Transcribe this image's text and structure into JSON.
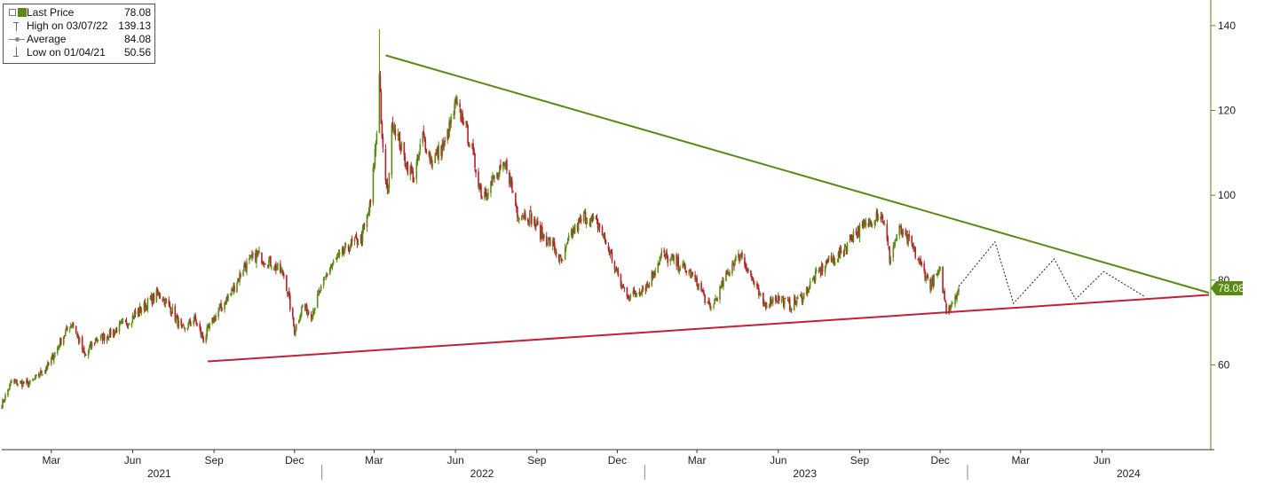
{
  "legend": {
    "last_price_label": "Last Price",
    "last_price_value": "78.08",
    "high_label": "High on 03/07/22",
    "high_value": "139.13",
    "average_label": "Average",
    "average_value": "84.08",
    "low_label": "Low on 01/04/21",
    "low_value": "50.56"
  },
  "chart_data": {
    "type": "candlestick",
    "x_start": "2021-01-04",
    "x_end": "2024-09-30",
    "ylim": [
      40,
      145
    ],
    "yticks": [
      60,
      80,
      100,
      120,
      140
    ],
    "x_month_ticks": [
      {
        "label": "Mar",
        "date": "2021-03-01"
      },
      {
        "label": "Jun",
        "date": "2021-06-01"
      },
      {
        "label": "Sep",
        "date": "2021-09-01"
      },
      {
        "label": "Dec",
        "date": "2021-12-01"
      },
      {
        "label": "Mar",
        "date": "2022-03-01"
      },
      {
        "label": "Jun",
        "date": "2022-06-01"
      },
      {
        "label": "Sep",
        "date": "2022-09-01"
      },
      {
        "label": "Dec",
        "date": "2022-12-01"
      },
      {
        "label": "Mar",
        "date": "2023-03-01"
      },
      {
        "label": "Jun",
        "date": "2023-06-01"
      },
      {
        "label": "Sep",
        "date": "2023-09-01"
      },
      {
        "label": "Dec",
        "date": "2023-12-01"
      },
      {
        "label": "Mar",
        "date": "2024-03-01"
      },
      {
        "label": "Jun",
        "date": "2024-06-01"
      }
    ],
    "x_year_labels": [
      {
        "label": "2021",
        "date": "2021-07-01"
      },
      {
        "label": "2022",
        "date": "2022-07-01"
      },
      {
        "label": "2023",
        "date": "2023-07-01"
      },
      {
        "label": "2024",
        "date": "2024-07-01"
      }
    ],
    "year_separators": [
      "2022-01-01",
      "2023-01-01",
      "2024-01-01"
    ],
    "last_price_marker": {
      "value": 78.08,
      "label": "78.08",
      "color": "#5b8a13"
    },
    "colors": {
      "up": "#5b8a13",
      "down": "#b5202e",
      "resistance": "#5b8a13",
      "support": "#c0203a",
      "projection": "#222222",
      "axis": "#5b8a13"
    },
    "price_path": [
      [
        "2021-01-04",
        50.56
      ],
      [
        "2021-01-15",
        56
      ],
      [
        "2021-02-05",
        55.5
      ],
      [
        "2021-02-26",
        60
      ],
      [
        "2021-03-15",
        67
      ],
      [
        "2021-03-25",
        70
      ],
      [
        "2021-04-08",
        62
      ],
      [
        "2021-04-20",
        66
      ],
      [
        "2021-05-05",
        67
      ],
      [
        "2021-05-25",
        70
      ],
      [
        "2021-06-15",
        74
      ],
      [
        "2021-07-01",
        77
      ],
      [
        "2021-07-15",
        73
      ],
      [
        "2021-07-27",
        68
      ],
      [
        "2021-08-10",
        71
      ],
      [
        "2021-08-20",
        66
      ],
      [
        "2021-09-01",
        71
      ],
      [
        "2021-09-20",
        77
      ],
      [
        "2021-10-05",
        83
      ],
      [
        "2021-10-20",
        86
      ],
      [
        "2021-11-05",
        84
      ],
      [
        "2021-11-20",
        81
      ],
      [
        "2021-12-01",
        68
      ],
      [
        "2021-12-10",
        74
      ],
      [
        "2021-12-20",
        72
      ],
      [
        "2022-01-10",
        83
      ],
      [
        "2022-02-01",
        88
      ],
      [
        "2022-02-15",
        90
      ],
      [
        "2022-02-25",
        98
      ],
      [
        "2022-03-04",
        115
      ],
      [
        "2022-03-07",
        130
      ],
      [
        "2022-03-10",
        112
      ],
      [
        "2022-03-16",
        100
      ],
      [
        "2022-03-22",
        118
      ],
      [
        "2022-04-05",
        108
      ],
      [
        "2022-04-15",
        104
      ],
      [
        "2022-04-25",
        114
      ],
      [
        "2022-05-05",
        108
      ],
      [
        "2022-05-20",
        112
      ],
      [
        "2022-06-01",
        121
      ],
      [
        "2022-06-10",
        118
      ],
      [
        "2022-06-20",
        110
      ],
      [
        "2022-07-01",
        100
      ],
      [
        "2022-07-15",
        104
      ],
      [
        "2022-07-29",
        107
      ],
      [
        "2022-08-10",
        96
      ],
      [
        "2022-08-25",
        95
      ],
      [
        "2022-09-05",
        91
      ],
      [
        "2022-09-20",
        88
      ],
      [
        "2022-09-29",
        84
      ],
      [
        "2022-10-10",
        91
      ],
      [
        "2022-10-25",
        95
      ],
      [
        "2022-11-10",
        93
      ],
      [
        "2022-11-25",
        85
      ],
      [
        "2022-12-05",
        79
      ],
      [
        "2022-12-15",
        76
      ],
      [
        "2023-01-05",
        79
      ],
      [
        "2023-01-20",
        86
      ],
      [
        "2023-02-05",
        84
      ],
      [
        "2023-02-20",
        82
      ],
      [
        "2023-03-05",
        78
      ],
      [
        "2023-03-16",
        73
      ],
      [
        "2023-03-28",
        78
      ],
      [
        "2023-04-10",
        84
      ],
      [
        "2023-04-20",
        86
      ],
      [
        "2023-05-05",
        79
      ],
      [
        "2023-05-15",
        74
      ],
      [
        "2023-05-30",
        76
      ],
      [
        "2023-06-15",
        74
      ],
      [
        "2023-06-28",
        76
      ],
      [
        "2023-07-10",
        80
      ],
      [
        "2023-07-25",
        84
      ],
      [
        "2023-08-10",
        86
      ],
      [
        "2023-08-25",
        91
      ],
      [
        "2023-09-10",
        93
      ],
      [
        "2023-09-20",
        96
      ],
      [
        "2023-09-28",
        94
      ],
      [
        "2023-10-05",
        85
      ],
      [
        "2023-10-15",
        92
      ],
      [
        "2023-10-30",
        88
      ],
      [
        "2023-11-10",
        83
      ],
      [
        "2023-11-20",
        79
      ],
      [
        "2023-12-01",
        82
      ],
      [
        "2023-12-08",
        73
      ],
      [
        "2023-12-15",
        75
      ],
      [
        "2023-12-22",
        78.08
      ]
    ],
    "resistance_line": [
      [
        "2022-03-14",
        133
      ],
      [
        "2024-09-30",
        77
      ]
    ],
    "support_line": [
      [
        "2021-08-25",
        60.8
      ],
      [
        "2024-09-30",
        76.5
      ]
    ],
    "projection_path": [
      [
        "2023-12-22",
        78.5
      ],
      [
        "2024-02-01",
        89
      ],
      [
        "2024-02-22",
        74.5
      ],
      [
        "2024-04-08",
        85
      ],
      [
        "2024-05-02",
        75.5
      ],
      [
        "2024-06-03",
        82
      ],
      [
        "2024-07-20",
        76
      ]
    ]
  }
}
